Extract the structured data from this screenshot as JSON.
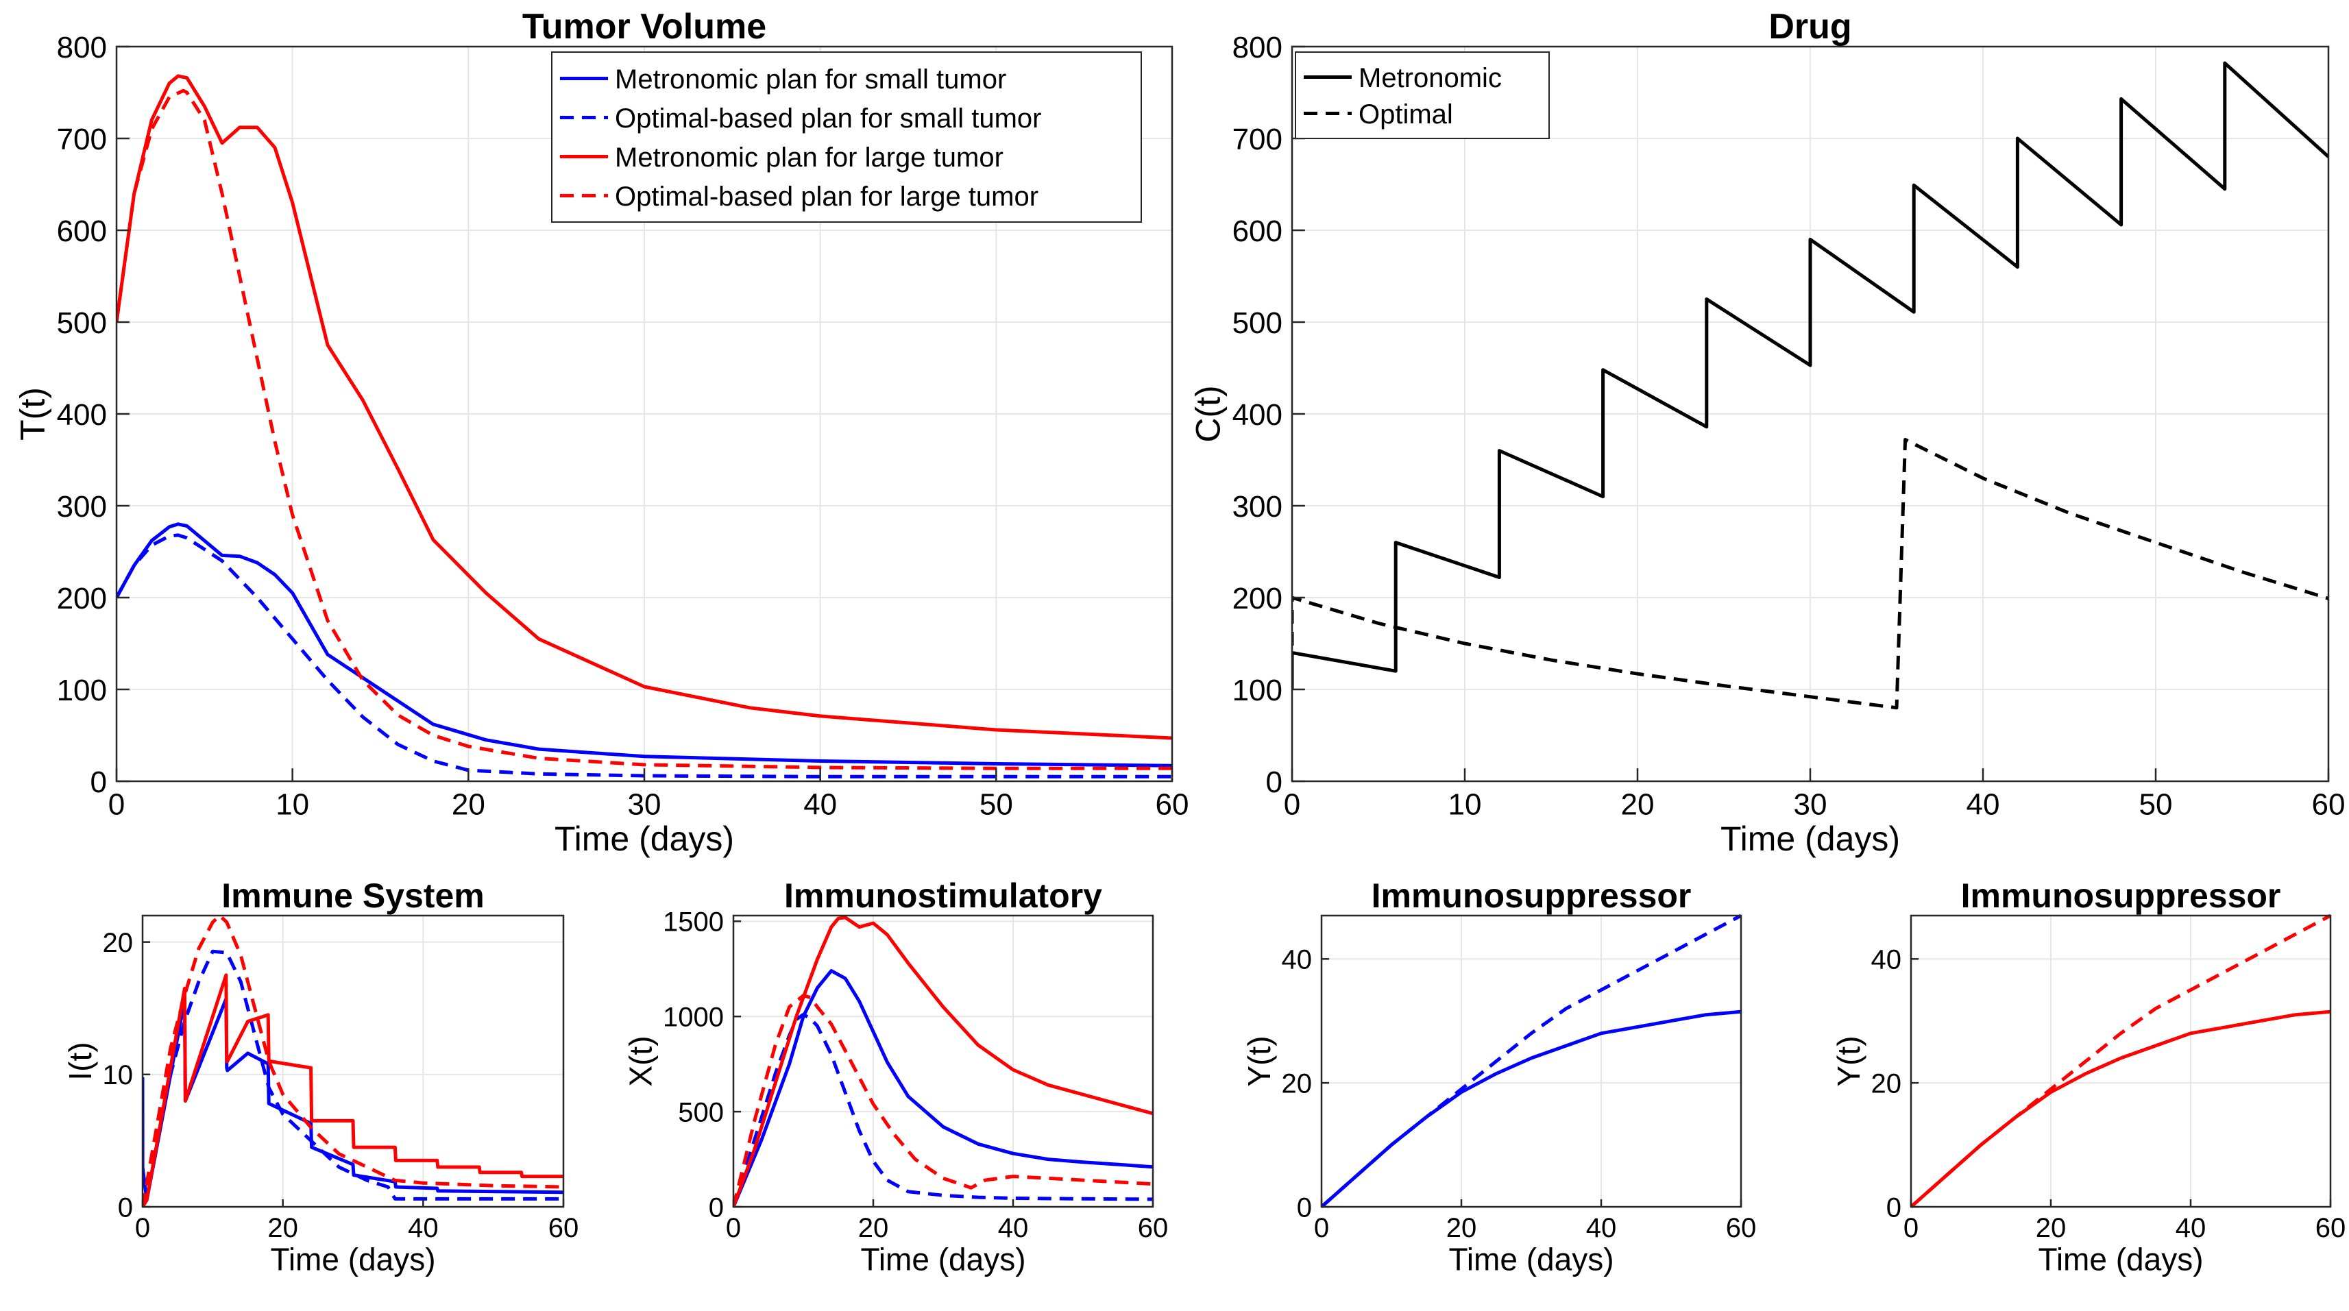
{
  "chart_data": [
    {
      "id": "tumor",
      "type": "line",
      "title": "Tumor Volume",
      "xlabel": "Time (days)",
      "ylabel": "T(t)",
      "xlim": [
        0,
        60
      ],
      "ylim": [
        0,
        800
      ],
      "xticks": [
        0,
        10,
        20,
        30,
        40,
        50,
        60
      ],
      "yticks": [
        0,
        100,
        200,
        300,
        400,
        500,
        600,
        700,
        800
      ],
      "grid": true,
      "legend": "top-right",
      "series": [
        {
          "name": "Metronomic plan for small tumor",
          "color": "#0000ff",
          "dash": "solid",
          "x": [
            0,
            1,
            2,
            3,
            3.5,
            4,
            5,
            6,
            7,
            8,
            9,
            10,
            12,
            15,
            18,
            21,
            24,
            30,
            40,
            50,
            60
          ],
          "y": [
            200,
            235,
            262,
            277,
            280,
            278,
            262,
            246,
            245,
            238,
            225,
            205,
            138,
            100,
            62,
            45,
            35,
            27,
            22,
            19,
            17
          ]
        },
        {
          "name": "Optimal-based plan for small tumor",
          "color": "#0000ff",
          "dash": "dashed",
          "x": [
            0,
            1,
            2,
            3,
            3.5,
            4,
            6,
            8,
            10,
            12,
            14,
            16,
            18,
            20,
            24,
            30,
            40,
            50,
            60
          ],
          "y": [
            200,
            235,
            257,
            267,
            268,
            265,
            240,
            200,
            155,
            110,
            70,
            40,
            22,
            12,
            8,
            6,
            5,
            5,
            5
          ]
        },
        {
          "name": "Metronomic plan for large tumor",
          "color": "#ff0000",
          "dash": "solid",
          "x": [
            0,
            1,
            2,
            3,
            3.5,
            4,
            5,
            6,
            7,
            8,
            9,
            10,
            12,
            14,
            16,
            18,
            21,
            24,
            30,
            36,
            40,
            50,
            60
          ],
          "y": [
            500,
            640,
            720,
            760,
            768,
            766,
            735,
            695,
            712,
            712,
            690,
            630,
            475,
            415,
            340,
            263,
            205,
            155,
            103,
            80,
            71,
            56,
            47
          ]
        },
        {
          "name": "Optimal-based plan for large tumor",
          "color": "#ff0000",
          "dash": "dashed",
          "x": [
            0,
            1,
            2,
            3,
            3.8,
            4,
            5,
            6,
            7,
            8,
            9,
            10,
            12,
            14,
            16,
            18,
            20,
            24,
            30,
            40,
            50,
            60
          ],
          "y": [
            500,
            640,
            710,
            745,
            752,
            750,
            720,
            640,
            550,
            460,
            370,
            290,
            175,
            110,
            72,
            50,
            38,
            25,
            18,
            15,
            14,
            14
          ]
        }
      ]
    },
    {
      "id": "drug",
      "type": "line",
      "title": "Drug",
      "xlabel": "Time (days)",
      "ylabel": "C(t)",
      "xlim": [
        0,
        60
      ],
      "ylim": [
        0,
        800
      ],
      "xticks": [
        0,
        10,
        20,
        30,
        40,
        50,
        60
      ],
      "yticks": [
        0,
        100,
        200,
        300,
        400,
        500,
        600,
        700,
        800
      ],
      "grid": true,
      "legend": "top-left",
      "series": [
        {
          "name": "Metronomic",
          "color": "#000000",
          "dash": "solid",
          "x": [
            0,
            0,
            6,
            6,
            12,
            12,
            18,
            18,
            24,
            24,
            30,
            30,
            36,
            36,
            42,
            42,
            48,
            48,
            54,
            54,
            60
          ],
          "y": [
            100,
            140,
            120,
            260,
            222,
            360,
            310,
            448,
            386,
            525,
            453,
            590,
            511,
            649,
            560,
            700,
            606,
            743,
            645,
            782,
            680
          ]
        },
        {
          "name": "Optimal",
          "color": "#000000",
          "dash": "dashed",
          "x": [
            0,
            0,
            5,
            10,
            15,
            20,
            25,
            30,
            35,
            35.5,
            40,
            45,
            50,
            55,
            60
          ],
          "y": [
            100,
            200,
            172,
            150,
            132,
            117,
            104,
            92,
            80,
            372,
            330,
            292,
            260,
            228,
            199
          ]
        }
      ]
    },
    {
      "id": "immune",
      "type": "line",
      "title": "Immune System",
      "xlabel": "Time (days)",
      "ylabel": "I(t)",
      "xlim": [
        0,
        60
      ],
      "ylim": [
        0,
        22
      ],
      "xticks": [
        0,
        20,
        40,
        60
      ],
      "yticks": [
        0,
        10,
        20
      ],
      "grid": true,
      "series": [
        {
          "color": "#0000ff",
          "dash": "solid",
          "x": [
            0,
            0.01,
            0.6,
            6,
            6.1,
            11.9,
            12,
            12.1,
            15,
            17.9,
            18,
            24,
            24.1,
            30,
            30.1,
            36,
            36.1,
            42,
            42.1,
            60
          ],
          "y": [
            9.8,
            3,
            0.5,
            15.6,
            8,
            15.7,
            10.5,
            10.3,
            11.6,
            10.8,
            7.8,
            6.3,
            4.5,
            3.2,
            2.4,
            1.9,
            1.5,
            1.4,
            1.2,
            1.1
          ]
        },
        {
          "color": "#0000ff",
          "dash": "dashed",
          "x": [
            0,
            2,
            4,
            6,
            8,
            10,
            12,
            14,
            16,
            18,
            20,
            24,
            28,
            32,
            35,
            36,
            60
          ],
          "y": [
            0,
            5,
            10,
            14,
            17,
            19.3,
            19.2,
            17,
            13,
            9,
            7,
            5,
            3,
            2,
            1.5,
            0.6,
            0.6
          ]
        },
        {
          "color": "#ff0000",
          "dash": "solid",
          "x": [
            0,
            0.6,
            6,
            6.1,
            11.9,
            12,
            12.1,
            15,
            17.9,
            18,
            18.1,
            24,
            24.1,
            30,
            30.1,
            36,
            36.1,
            42,
            42.1,
            48,
            48.1,
            54,
            54.1,
            60
          ],
          "y": [
            0,
            0.5,
            16.5,
            8,
            17.5,
            11,
            11,
            14,
            14.5,
            11,
            11,
            10.5,
            6.5,
            6.5,
            4.5,
            4.5,
            3.5,
            3.5,
            3,
            3,
            2.6,
            2.6,
            2.3,
            2.3
          ]
        },
        {
          "color": "#ff0000",
          "dash": "dashed",
          "x": [
            0,
            2,
            4,
            6,
            8,
            10,
            11,
            12,
            14,
            16,
            18,
            20,
            24,
            28,
            32,
            36,
            40,
            50,
            60
          ],
          "y": [
            0,
            6,
            12,
            16,
            19.5,
            21.5,
            22,
            21.5,
            19,
            15,
            11,
            8.5,
            6,
            4,
            3,
            2,
            1.8,
            1.6,
            1.5
          ]
        }
      ]
    },
    {
      "id": "immunostim",
      "type": "line",
      "title": "Immunostimulatory",
      "xlabel": "Time (days)",
      "ylabel": "X(t)",
      "xlim": [
        0,
        60
      ],
      "ylim": [
        0,
        1530
      ],
      "xticks": [
        0,
        20,
        40,
        60
      ],
      "yticks": [
        0,
        500,
        1000,
        1500
      ],
      "grid": true,
      "series": [
        {
          "color": "#0000ff",
          "dash": "solid",
          "x": [
            0,
            4,
            8,
            10,
            12,
            14,
            16,
            18,
            20,
            22,
            25,
            30,
            35,
            40,
            45,
            50,
            60
          ],
          "y": [
            0,
            350,
            750,
            1000,
            1150,
            1240,
            1200,
            1080,
            920,
            760,
            580,
            420,
            330,
            280,
            250,
            235,
            210
          ]
        },
        {
          "color": "#0000ff",
          "dash": "dashed",
          "x": [
            0,
            3,
            6,
            8,
            9,
            10,
            11,
            12,
            14,
            16,
            18,
            20,
            22,
            25,
            30,
            35,
            40,
            50,
            60
          ],
          "y": [
            0,
            350,
            700,
            900,
            985,
            1010,
            990,
            950,
            800,
            600,
            400,
            240,
            140,
            80,
            60,
            50,
            45,
            42,
            40
          ]
        },
        {
          "color": "#ff0000",
          "dash": "solid",
          "x": [
            0,
            3,
            6,
            9,
            12,
            14,
            15,
            16,
            18,
            20,
            22,
            25,
            30,
            35,
            40,
            45,
            50,
            55,
            60
          ],
          "y": [
            0,
            300,
            650,
            1000,
            1300,
            1470,
            1515,
            1520,
            1470,
            1490,
            1430,
            1280,
            1050,
            850,
            720,
            640,
            590,
            540,
            490
          ]
        },
        {
          "color": "#ff0000",
          "dash": "dashed",
          "x": [
            0,
            3,
            6,
            8,
            10,
            11,
            12,
            14,
            16,
            18,
            20,
            23,
            26,
            30,
            34,
            36,
            40,
            50,
            60
          ],
          "y": [
            0,
            450,
            850,
            1050,
            1110,
            1100,
            1050,
            960,
            820,
            680,
            540,
            380,
            250,
            150,
            100,
            140,
            160,
            140,
            120
          ]
        }
      ]
    },
    {
      "id": "suppr1",
      "type": "line",
      "title": "Immunosuppressor",
      "xlabel": "Time (days)",
      "ylabel": "Y(t)",
      "xlim": [
        0,
        60
      ],
      "ylim": [
        0,
        47
      ],
      "xticks": [
        0,
        20,
        40,
        60
      ],
      "yticks": [
        0,
        20,
        40
      ],
      "grid": true,
      "series": [
        {
          "color": "#0000ff",
          "dash": "solid",
          "x": [
            0,
            5,
            10,
            15,
            20,
            25,
            30,
            35,
            40,
            45,
            50,
            55,
            60
          ],
          "y": [
            0,
            5,
            10,
            14.5,
            18.5,
            21.5,
            24,
            26,
            28,
            29,
            30,
            31,
            31.5
          ]
        },
        {
          "color": "#0000ff",
          "dash": "dashed",
          "x": [
            0,
            5,
            10,
            15,
            20,
            25,
            30,
            35,
            40,
            45,
            50,
            55,
            60
          ],
          "y": [
            0,
            5,
            10,
            14.5,
            19,
            23.5,
            28,
            32,
            35,
            38,
            41,
            44,
            47
          ]
        }
      ]
    },
    {
      "id": "suppr2",
      "type": "line",
      "title": "Immunosuppressor",
      "xlabel": "Time (days)",
      "ylabel": "Y(t)",
      "xlim": [
        0,
        60
      ],
      "ylim": [
        0,
        47
      ],
      "xticks": [
        0,
        20,
        40,
        60
      ],
      "yticks": [
        0,
        20,
        40
      ],
      "grid": true,
      "series": [
        {
          "color": "#ff0000",
          "dash": "solid",
          "x": [
            0,
            5,
            10,
            15,
            20,
            25,
            30,
            35,
            40,
            45,
            50,
            55,
            60
          ],
          "y": [
            0,
            5,
            10,
            14.5,
            18.5,
            21.5,
            24,
            26,
            28,
            29,
            30,
            31,
            31.5
          ]
        },
        {
          "color": "#ff0000",
          "dash": "dashed",
          "x": [
            0,
            5,
            10,
            15,
            20,
            25,
            30,
            35,
            40,
            45,
            50,
            55,
            60
          ],
          "y": [
            0,
            5,
            10,
            14.5,
            19,
            23.5,
            28,
            32,
            35,
            38,
            41,
            44,
            47
          ]
        }
      ]
    }
  ]
}
